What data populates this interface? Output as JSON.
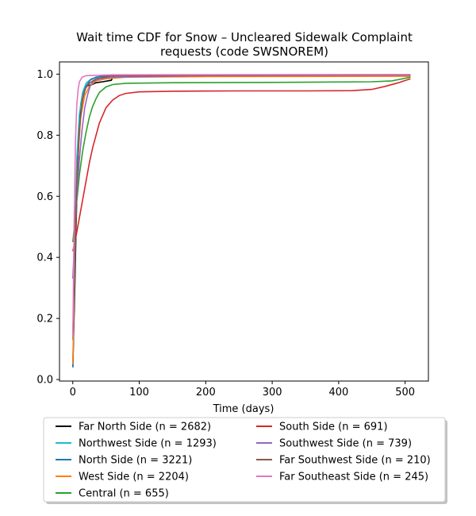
{
  "chart_data": {
    "type": "line",
    "title_lines": [
      "Wait time CDF for Snow – Uncleared Sidewalk Complaint",
      "requests (code SWSNOREM)"
    ],
    "xlabel": "Time (days)",
    "ylabel": "",
    "xlim": [
      -20,
      535
    ],
    "ylim": [
      -0.005,
      1.04
    ],
    "xticks": [
      0,
      100,
      200,
      300,
      400,
      500
    ],
    "yticks": [
      0.0,
      0.2,
      0.4,
      0.6,
      0.8,
      1.0
    ],
    "grid": false,
    "legend_placement": "below plot, two columns",
    "series": [
      {
        "name": "Far North Side (n = 2682)",
        "color": "#000000",
        "points": [
          [
            0,
            0.04
          ],
          [
            3,
            0.3
          ],
          [
            6,
            0.6
          ],
          [
            9,
            0.8
          ],
          [
            12,
            0.9
          ],
          [
            15,
            0.94
          ],
          [
            18,
            0.955
          ],
          [
            22,
            0.962
          ],
          [
            28,
            0.965
          ],
          [
            35,
            0.972
          ],
          [
            45,
            0.975
          ],
          [
            58,
            0.98
          ],
          [
            61,
            0.995
          ],
          [
            150,
            0.995
          ],
          [
            300,
            0.995
          ],
          [
            508,
            0.995
          ]
        ]
      },
      {
        "name": "Northwest Side (n = 1293)",
        "color": "#17becf",
        "points": [
          [
            0,
            0.13
          ],
          [
            3,
            0.45
          ],
          [
            6,
            0.72
          ],
          [
            10,
            0.87
          ],
          [
            15,
            0.94
          ],
          [
            20,
            0.97
          ],
          [
            28,
            0.985
          ],
          [
            40,
            0.992
          ],
          [
            60,
            0.995
          ],
          [
            200,
            0.997
          ],
          [
            508,
            0.997
          ]
        ]
      },
      {
        "name": "North Side (n = 3221)",
        "color": "#1f77b4",
        "points": [
          [
            0,
            0.04
          ],
          [
            3,
            0.35
          ],
          [
            6,
            0.62
          ],
          [
            10,
            0.82
          ],
          [
            15,
            0.92
          ],
          [
            20,
            0.96
          ],
          [
            26,
            0.98
          ],
          [
            35,
            0.99
          ],
          [
            50,
            0.995
          ],
          [
            508,
            0.997
          ]
        ]
      },
      {
        "name": "West Side (n = 2204)",
        "color": "#ff7f0e",
        "points": [
          [
            0,
            0.05
          ],
          [
            3,
            0.4
          ],
          [
            7,
            0.7
          ],
          [
            12,
            0.86
          ],
          [
            18,
            0.93
          ],
          [
            25,
            0.96
          ],
          [
            35,
            0.978
          ],
          [
            50,
            0.985
          ],
          [
            80,
            0.99
          ],
          [
            200,
            0.992
          ],
          [
            508,
            0.993
          ]
        ]
      },
      {
        "name": "Central (n = 655)",
        "color": "#2ca02c",
        "points": [
          [
            0,
            0.45
          ],
          [
            5,
            0.56
          ],
          [
            10,
            0.67
          ],
          [
            15,
            0.75
          ],
          [
            20,
            0.81
          ],
          [
            25,
            0.86
          ],
          [
            30,
            0.895
          ],
          [
            35,
            0.92
          ],
          [
            40,
            0.94
          ],
          [
            50,
            0.958
          ],
          [
            60,
            0.966
          ],
          [
            80,
            0.97
          ],
          [
            150,
            0.972
          ],
          [
            300,
            0.973
          ],
          [
            450,
            0.975
          ],
          [
            480,
            0.978
          ],
          [
            508,
            0.99
          ]
        ]
      },
      {
        "name": "South Side (n = 691)",
        "color": "#d62728",
        "points": [
          [
            0,
            0.42
          ],
          [
            5,
            0.47
          ],
          [
            10,
            0.53
          ],
          [
            15,
            0.59
          ],
          [
            20,
            0.65
          ],
          [
            25,
            0.71
          ],
          [
            30,
            0.76
          ],
          [
            40,
            0.84
          ],
          [
            50,
            0.89
          ],
          [
            60,
            0.915
          ],
          [
            70,
            0.93
          ],
          [
            80,
            0.937
          ],
          [
            100,
            0.942
          ],
          [
            150,
            0.944
          ],
          [
            250,
            0.945
          ],
          [
            350,
            0.945
          ],
          [
            420,
            0.946
          ],
          [
            450,
            0.95
          ],
          [
            470,
            0.96
          ],
          [
            490,
            0.972
          ],
          [
            508,
            0.985
          ]
        ]
      },
      {
        "name": "Southwest Side (n = 739)",
        "color": "#9467bd",
        "points": [
          [
            0,
            0.33
          ],
          [
            3,
            0.48
          ],
          [
            6,
            0.6
          ],
          [
            10,
            0.72
          ],
          [
            14,
            0.82
          ],
          [
            18,
            0.89
          ],
          [
            22,
            0.93
          ],
          [
            26,
            0.96
          ],
          [
            30,
            0.975
          ],
          [
            40,
            0.985
          ],
          [
            60,
            0.99
          ],
          [
            200,
            0.995
          ],
          [
            508,
            0.997
          ]
        ]
      },
      {
        "name": "Far Southwest Side (n = 210)",
        "color": "#8c564b",
        "points": [
          [
            0,
            0.14
          ],
          [
            3,
            0.42
          ],
          [
            6,
            0.65
          ],
          [
            10,
            0.82
          ],
          [
            14,
            0.91
          ],
          [
            18,
            0.95
          ],
          [
            25,
            0.97
          ],
          [
            35,
            0.985
          ],
          [
            60,
            0.995
          ],
          [
            508,
            0.998
          ]
        ]
      },
      {
        "name": "Far Southeast Side (n = 245)",
        "color": "#e377c2",
        "points": [
          [
            0,
            0.14
          ],
          [
            2,
            0.5
          ],
          [
            4,
            0.78
          ],
          [
            6,
            0.9
          ],
          [
            8,
            0.95
          ],
          [
            10,
            0.975
          ],
          [
            14,
            0.99
          ],
          [
            20,
            0.995
          ],
          [
            60,
            0.998
          ],
          [
            508,
            0.999
          ]
        ]
      }
    ]
  }
}
